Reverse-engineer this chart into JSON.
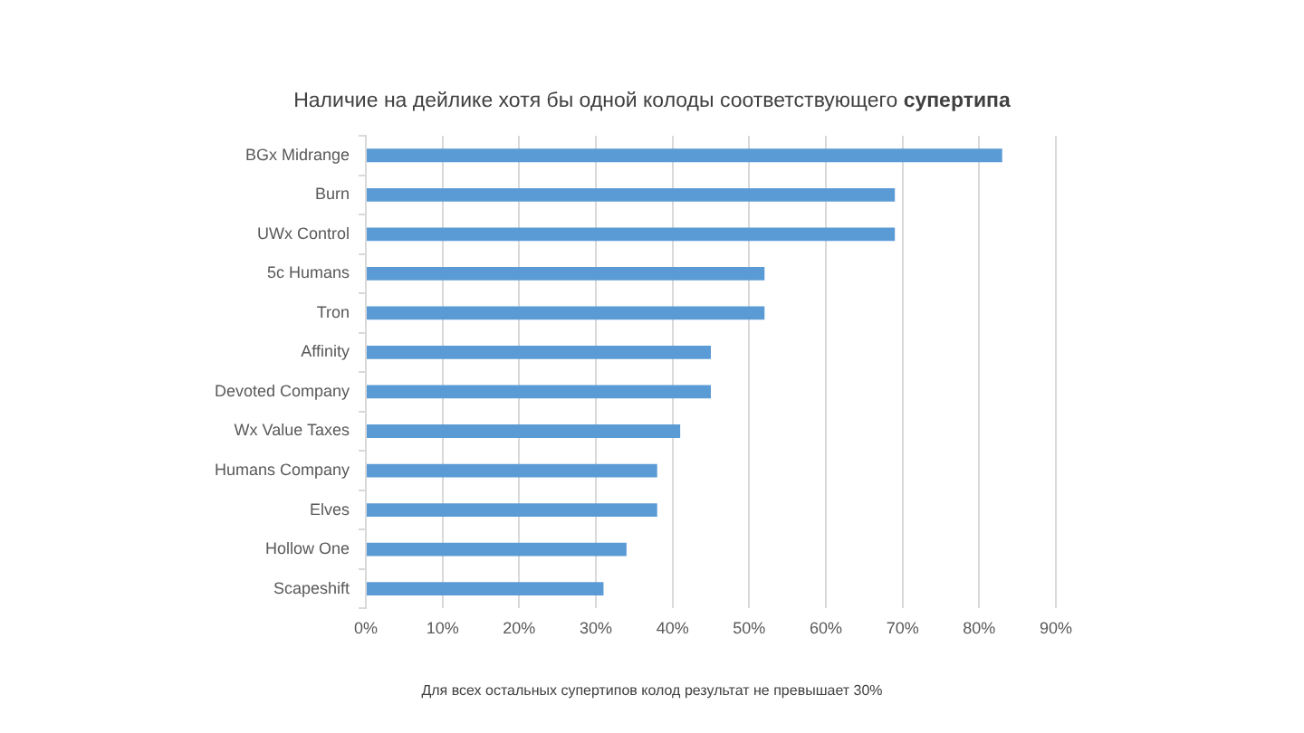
{
  "chart_data": {
    "type": "bar",
    "orientation": "horizontal",
    "title": "Наличие на дейлике хотя бы одной колоды соответствующего супертипа",
    "categories": [
      "BGx Midrange",
      "Burn",
      "UWx Control",
      "5c Humans",
      "Tron",
      "Affinity",
      "Devoted Company",
      "Wx Value Taxes",
      "Humans Company",
      "Elves",
      "Hollow One",
      "Scapeshift"
    ],
    "values": [
      83,
      69,
      69,
      52,
      52,
      45,
      45,
      41,
      38,
      38,
      34,
      31
    ],
    "color": "#5b9bd5",
    "xlim": [
      0,
      90
    ],
    "xticks": [
      {
        "value": 0,
        "label": "0%"
      },
      {
        "value": 10,
        "label": "10%"
      },
      {
        "value": 20,
        "label": "20%"
      },
      {
        "value": 30,
        "label": "30%"
      },
      {
        "value": 40,
        "label": "40%"
      },
      {
        "value": 50,
        "label": "50%"
      },
      {
        "value": 60,
        "label": "60%"
      },
      {
        "value": 70,
        "label": "70%"
      },
      {
        "value": 80,
        "label": "80%"
      },
      {
        "value": 90,
        "label": "90%"
      }
    ],
    "grid": "x",
    "annotations": [
      "Для всех остальных супертипов колод результат не превышает 30%"
    ]
  }
}
